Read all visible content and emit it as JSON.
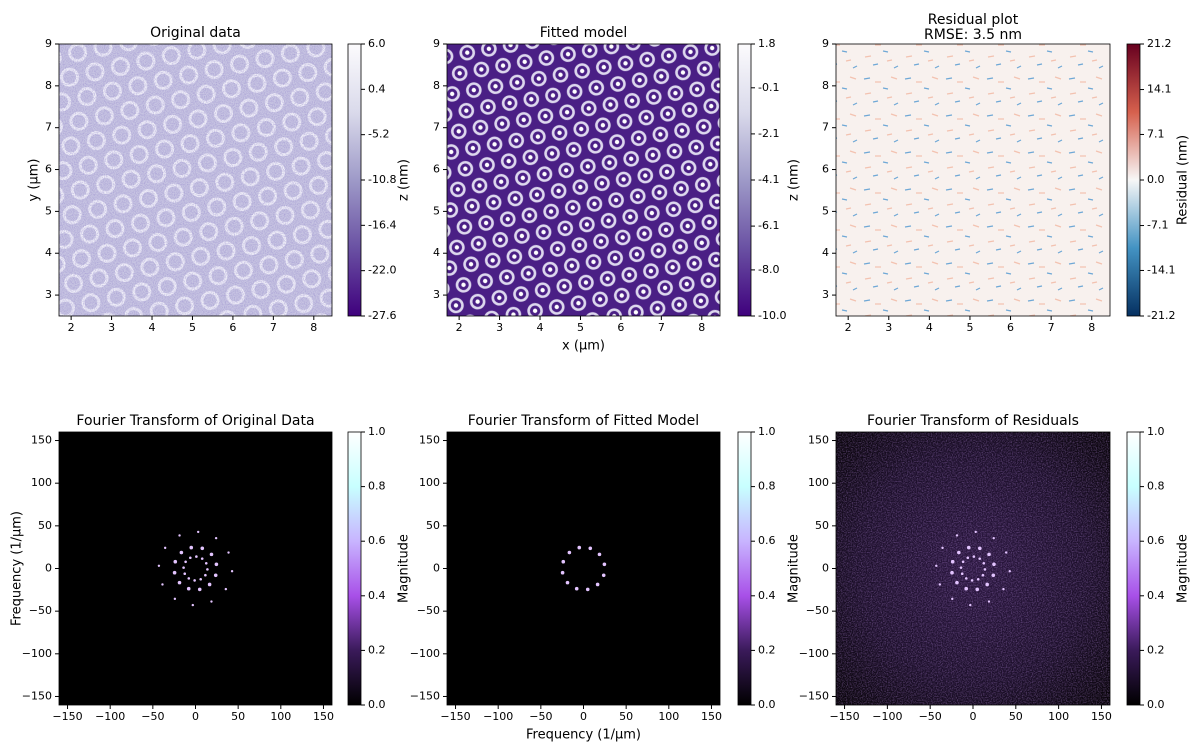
{
  "chart_data": [
    {
      "type": "image",
      "title": "Original data",
      "ylabel": "y (µm)",
      "xlim": [
        1.7,
        8.45
      ],
      "ylim": [
        2.5,
        9
      ],
      "xticks": [
        2,
        3,
        4,
        5,
        6,
        7,
        8
      ],
      "yticks": [
        3,
        4,
        5,
        6,
        7,
        8,
        9
      ],
      "colorbar": {
        "label": "z (nm)",
        "lim": [
          -27.6,
          6.0
        ],
        "colors": [
          "#3f007d",
          "#6a51a3",
          "#9e9ac8",
          "#dadaeb",
          "#fcfbfd"
        ],
        "ticks": [
          {
            "value": 6.0,
            "label": "6.0"
          },
          0.4,
          -5.2,
          -10.8,
          -16.4,
          {
            "value": -22.0,
            "label": "-22.0"
          },
          -27.6
        ]
      }
    },
    {
      "type": "image",
      "title": "Fitted model",
      "xlabel": "x (µm)",
      "xlim": [
        1.7,
        8.45
      ],
      "ylim": [
        2.5,
        9
      ],
      "xticks": [
        2,
        3,
        4,
        5,
        6,
        7,
        8
      ],
      "yticks": [
        3,
        4,
        5,
        6,
        7,
        8,
        9
      ],
      "colorbar": {
        "label": "z (nm)",
        "lim": [
          -10.0,
          1.8
        ],
        "colors": [
          "#3f007d",
          "#6a51a3",
          "#9e9ac8",
          "#dadaeb",
          "#fcfbfd"
        ],
        "ticks": [
          1.8,
          -0.1,
          -2.1,
          -4.1,
          -6.1,
          {
            "value": -8.0,
            "label": "-8.0"
          },
          {
            "value": -10.0,
            "label": "-10.0"
          }
        ]
      }
    },
    {
      "type": "image",
      "title": "Residual plot",
      "subtitle": "RMSE: 3.5 nm",
      "xlim": [
        1.7,
        8.45
      ],
      "ylim": [
        2.5,
        9
      ],
      "xticks": [
        2,
        3,
        4,
        5,
        6,
        7,
        8
      ],
      "yticks": [
        3,
        4,
        5,
        6,
        7,
        8,
        9
      ],
      "colorbar": {
        "label": "Residual (nm)",
        "lim": [
          -21.2,
          21.2
        ],
        "colors": [
          "#053061",
          "#4393c3",
          "#f7f7f7",
          "#d6604d",
          "#67001f"
        ],
        "ticks": [
          21.2,
          14.1,
          7.1,
          {
            "value": 0.0,
            "label": "0.0"
          },
          -7.1,
          -14.1,
          -21.2
        ]
      }
    },
    {
      "type": "fourier",
      "title": "Fourier Transform of Original Data",
      "ylabel": "Frequency (1/µm)",
      "xlim": [
        -160,
        160
      ],
      "ylim": [
        -160,
        160
      ],
      "xticks": [
        {
          "value": -150,
          "label": "−150"
        },
        {
          "value": -100,
          "label": "−100"
        },
        {
          "value": -50,
          "label": "−50"
        },
        0,
        50,
        100,
        150
      ],
      "yticks": [
        {
          "value": -150,
          "label": "−150"
        },
        {
          "value": -100,
          "label": "−100"
        },
        {
          "value": -50,
          "label": "−50"
        },
        0,
        50,
        100,
        150
      ],
      "colorbar": {
        "label": "Magnitude",
        "lim": [
          0,
          1
        ],
        "colors": [
          "#000000",
          "#3a1a5a",
          "#a850e8",
          "#c8b4ff",
          "#c8ffff",
          "#ffffff"
        ],
        "ticks": [
          {
            "value": 0,
            "label": "0.0"
          },
          0.2,
          0.4,
          0.6,
          0.8,
          {
            "value": 1,
            "label": "1.0"
          }
        ]
      }
    },
    {
      "type": "fourier",
      "title": "Fourier Transform of Fitted Model",
      "xlabel": "Frequency (1/µm)",
      "xlim": [
        -160,
        160
      ],
      "ylim": [
        -160,
        160
      ],
      "xticks": [
        {
          "value": -150,
          "label": "−150"
        },
        {
          "value": -100,
          "label": "−100"
        },
        {
          "value": -50,
          "label": "−50"
        },
        0,
        50,
        100,
        150
      ],
      "yticks": [
        {
          "value": -150,
          "label": "−150"
        },
        {
          "value": -100,
          "label": "−100"
        },
        {
          "value": -50,
          "label": "−50"
        },
        0,
        50,
        100,
        150
      ],
      "colorbar": {
        "label": "Magnitude",
        "lim": [
          0,
          1
        ],
        "colors": [
          "#000000",
          "#3a1a5a",
          "#a850e8",
          "#c8b4ff",
          "#c8ffff",
          "#ffffff"
        ],
        "ticks": [
          {
            "value": 0,
            "label": "0.0"
          },
          0.2,
          0.4,
          0.6,
          0.8,
          {
            "value": 1,
            "label": "1.0"
          }
        ]
      }
    },
    {
      "type": "fourier",
      "title": "Fourier Transform of Residuals",
      "xlim": [
        -160,
        160
      ],
      "ylim": [
        -160,
        160
      ],
      "xticks": [
        {
          "value": -150,
          "label": "−150"
        },
        {
          "value": -100,
          "label": "−100"
        },
        {
          "value": -50,
          "label": "−50"
        },
        0,
        50,
        100,
        150
      ],
      "yticks": [
        {
          "value": -150,
          "label": "−150"
        },
        {
          "value": -100,
          "label": "−100"
        },
        {
          "value": -50,
          "label": "−50"
        },
        0,
        50,
        100,
        150
      ],
      "colorbar": {
        "label": "Magnitude",
        "lim": [
          0,
          1
        ],
        "colors": [
          "#000000",
          "#3a1a5a",
          "#a850e8",
          "#c8b4ff",
          "#c8ffff",
          "#ffffff"
        ],
        "ticks": [
          {
            "value": 0,
            "label": "0.0"
          },
          0.2,
          0.4,
          0.6,
          0.8,
          {
            "value": 1,
            "label": "1.0"
          }
        ]
      }
    }
  ]
}
